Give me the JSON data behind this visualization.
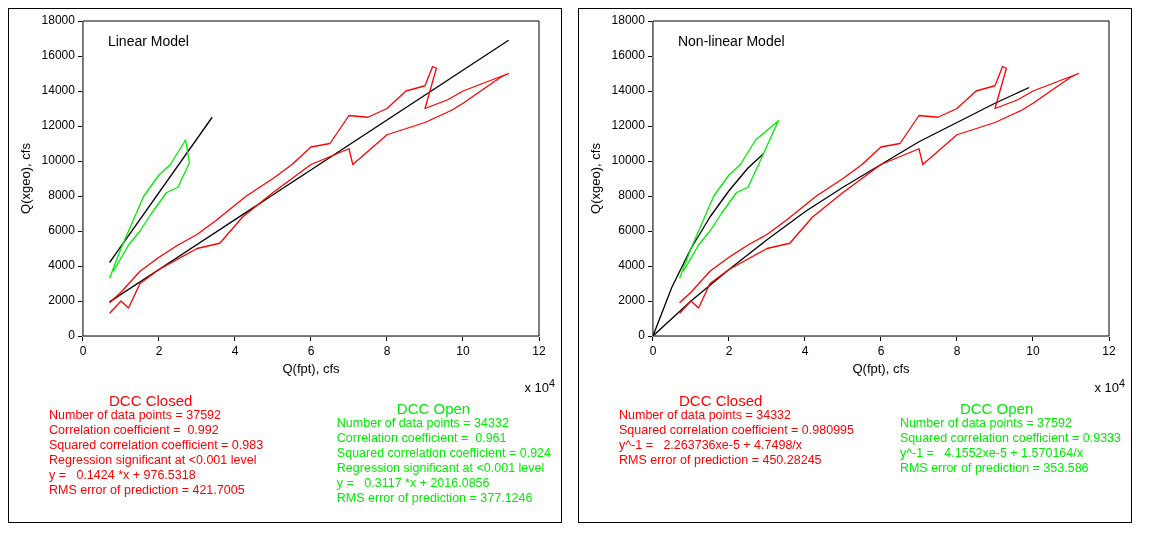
{
  "chart_data": [
    {
      "type": "line",
      "title": "Linear Model",
      "xlabel": "Q(fpt), cfs",
      "ylabel": "Q(xgeo), cfs",
      "xlim": [
        0,
        12
      ],
      "xticks": [
        0,
        2,
        4,
        6,
        8,
        10,
        12
      ],
      "ylim": [
        0,
        18000
      ],
      "yticks": [
        0,
        2000,
        4000,
        6000,
        8000,
        10000,
        12000,
        14000,
        16000,
        18000
      ],
      "grid": false,
      "legend": false,
      "marker": "none",
      "line_style": "solid",
      "series": [
        {
          "name": "DCC Closed",
          "color": "#ff0000",
          "x": [
            0.7,
            1,
            1.5,
            2,
            2.5,
            3,
            3.5,
            4.3,
            5,
            5.5,
            6,
            6.5,
            7,
            7.5,
            8,
            8.5,
            9,
            9.2,
            9.3,
            9,
            9.6,
            10,
            11.2,
            11,
            10,
            9.7,
            9,
            8,
            7.1,
            7,
            6,
            5,
            4.2,
            3.6,
            3,
            2,
            1.5,
            1.2,
            1,
            0.7
          ],
          "values": [
            1900,
            2500,
            3700,
            4500,
            5200,
            5800,
            6600,
            8000,
            9000,
            9800,
            10800,
            11000,
            12600,
            12500,
            13000,
            14000,
            14300,
            15400,
            15300,
            13000,
            13500,
            14000,
            15000,
            14800,
            13300,
            12900,
            12200,
            11500,
            9800,
            10700,
            9800,
            8200,
            6800,
            5300,
            5000,
            3800,
            3000,
            1600,
            2000,
            1300
          ]
        },
        {
          "name": "DCC Open",
          "color": "#00ee00",
          "x": [
            0.7,
            1,
            1.3,
            1.6,
            2,
            2.3,
            2.7,
            2.8,
            2.5,
            2.2,
            1.8,
            1.5,
            1.2,
            0.8
          ],
          "values": [
            3300,
            5000,
            6500,
            8000,
            9200,
            9800,
            11200,
            9900,
            8500,
            8200,
            7000,
            6000,
            5200,
            3700
          ]
        },
        {
          "type": "line",
          "color": "#000000",
          "x": [
            0.7,
            3.4
          ],
          "values": [
            4200,
            12500
          ]
        },
        {
          "type": "line",
          "color": "#000000",
          "x": [
            0.7,
            11.2
          ],
          "values": [
            1950,
            16900
          ]
        }
      ],
      "annotations": [
        "x 10$^{4}$",
        "Number of data points = 37592",
        "Correlation coefficient =  0.992",
        "Squared correlation coefficient = 0.983",
        "Regression significant at <0.001 level",
        "y =   0.1424 *x + 976.5318",
        "RMS error of prediction = 421.7005",
        "Number of data points = 34332",
        "Correlation coefficient =  0.961",
        "Squared correlation coefficient = 0.924",
        "Regression significant at <0.001 level",
        "y =   0.3117 *x + 2016.0856",
        "RMS error of prediction = 377.1246"
      ]
    },
    {
      "type": "line",
      "title": "Non-linear Model",
      "xlabel": "Q(fpt), cfs",
      "ylabel": "Q(xgeo), cfs",
      "xlim": [
        0,
        12
      ],
      "xticks": [
        0,
        2,
        4,
        6,
        8,
        10,
        12
      ],
      "ylim": [
        0,
        18000
      ],
      "yticks": [
        0,
        2000,
        4000,
        6000,
        8000,
        10000,
        12000,
        14000,
        16000,
        18000
      ],
      "grid": false,
      "legend": false,
      "marker": "none",
      "line_style": "solid",
      "series": [
        {
          "name": "DCC Closed",
          "color": "#ff0000",
          "x": [
            0.7,
            1,
            1.5,
            2,
            2.5,
            3,
            3.5,
            4.3,
            5,
            5.5,
            6,
            6.5,
            7,
            7.5,
            8,
            8.5,
            9,
            9.2,
            9.3,
            9,
            9.6,
            10,
            11.2,
            11,
            10,
            9.7,
            9,
            8,
            7.1,
            7,
            6,
            5,
            4.2,
            3.6,
            3,
            2,
            1.5,
            1.2,
            1,
            0.7
          ],
          "values": [
            1900,
            2500,
            3700,
            4500,
            5200,
            5800,
            6600,
            8000,
            9000,
            9800,
            10800,
            11000,
            12600,
            12500,
            13000,
            14000,
            14300,
            15400,
            15300,
            13000,
            13500,
            14000,
            15000,
            14800,
            13300,
            12900,
            12200,
            11500,
            9800,
            10700,
            9800,
            8200,
            6800,
            5300,
            5000,
            3800,
            3000,
            1600,
            2000,
            1300
          ]
        },
        {
          "name": "DCC Open",
          "color": "#00ee00",
          "x": [
            0.7,
            1,
            1.3,
            1.6,
            2,
            2.3,
            2.7,
            3.3,
            2.8,
            2.5,
            2.2,
            1.8,
            1.5,
            1.2,
            0.8
          ],
          "values": [
            3300,
            5000,
            6500,
            8000,
            9200,
            9800,
            11200,
            12300,
            9900,
            8500,
            8200,
            7000,
            6000,
            5200,
            3700
          ]
        },
        {
          "type": "line",
          "color": "#000000",
          "x": [
            0,
            0.5,
            1,
            1.5,
            2,
            2.5,
            2.9
          ],
          "values": [
            0,
            2800,
            5000,
            6800,
            8300,
            9600,
            10400
          ]
        },
        {
          "type": "line",
          "color": "#000000",
          "x": [
            0,
            1,
            2,
            3,
            4,
            5,
            6,
            7,
            8,
            9,
            9.9
          ],
          "values": [
            0,
            2000,
            3800,
            5500,
            7100,
            8500,
            9800,
            11100,
            12200,
            13300,
            14200
          ]
        }
      ],
      "annotations": [
        "x 10$^{4}$",
        "Number of data points = 34332",
        "Squared correlation coefficient = 0.980995",
        "y^-1 =   2.263736xe-5 + 4.7498/x",
        "RMS error of prediction = 450.28245",
        "Number of data points = 37592",
        "Squared correlation coefficient = 0.9333",
        "y^-1 =   4.1552xe-5 + 1.570164/x",
        "RMS error of prediction = 353.586"
      ]
    }
  ]
}
